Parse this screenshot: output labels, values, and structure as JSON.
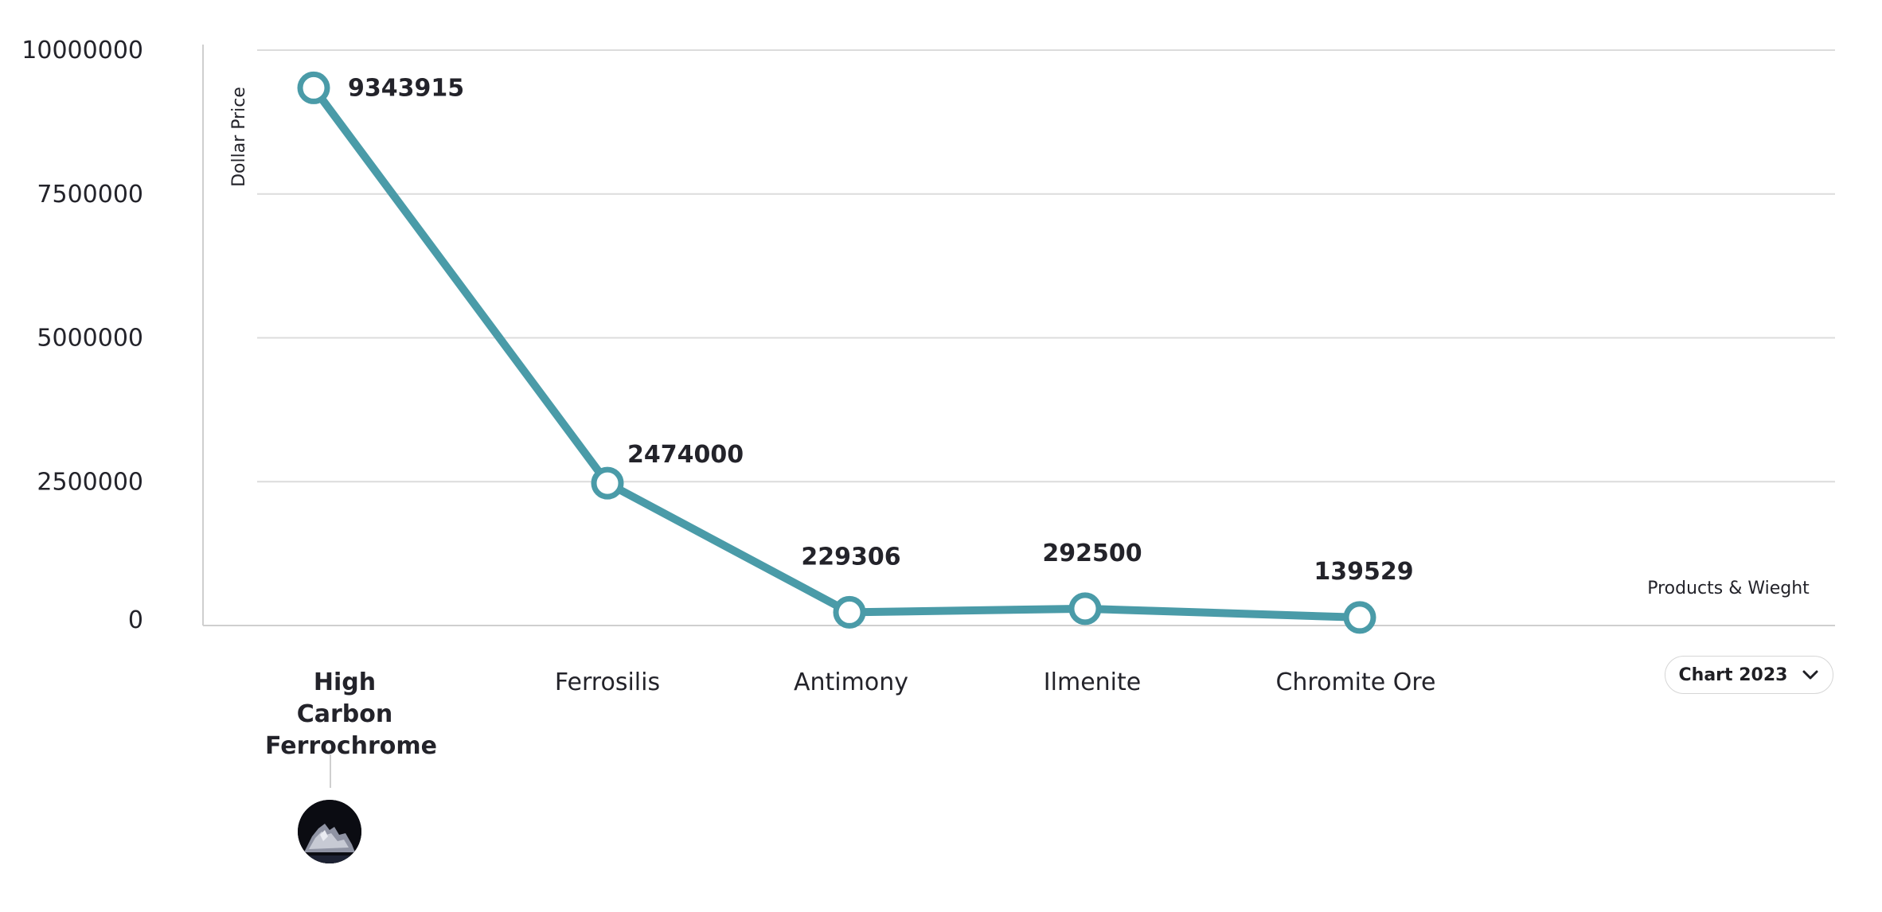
{
  "chart_data": {
    "type": "line",
    "categories": [
      "High Carbon Ferrochrome",
      "Ferrosilis",
      "Antimony",
      "Ilmenite",
      "Chromite Ore"
    ],
    "series": [
      {
        "values": [
          9343915,
          2474000,
          229306,
          292500,
          139529
        ],
        "color": "#4a9ba8"
      }
    ],
    "data_labels": [
      "9343915",
      "2474000",
      "229306",
      "292500",
      "139529"
    ],
    "y_ticks": [
      "0",
      "2500000",
      "5000000",
      "7500000",
      "10000000"
    ],
    "ylim": [
      0,
      10000000
    ],
    "ylabel": "Dollar Price",
    "xlabel": "Products & Wieght",
    "grid": true,
    "selected_category": "High Carbon Ferrochrome"
  },
  "controls": {
    "year_select": {
      "selected": "Chart 2023",
      "icon": "chevron-down-icon"
    }
  },
  "thumbnail": {
    "icon": "product-thumbnail"
  }
}
